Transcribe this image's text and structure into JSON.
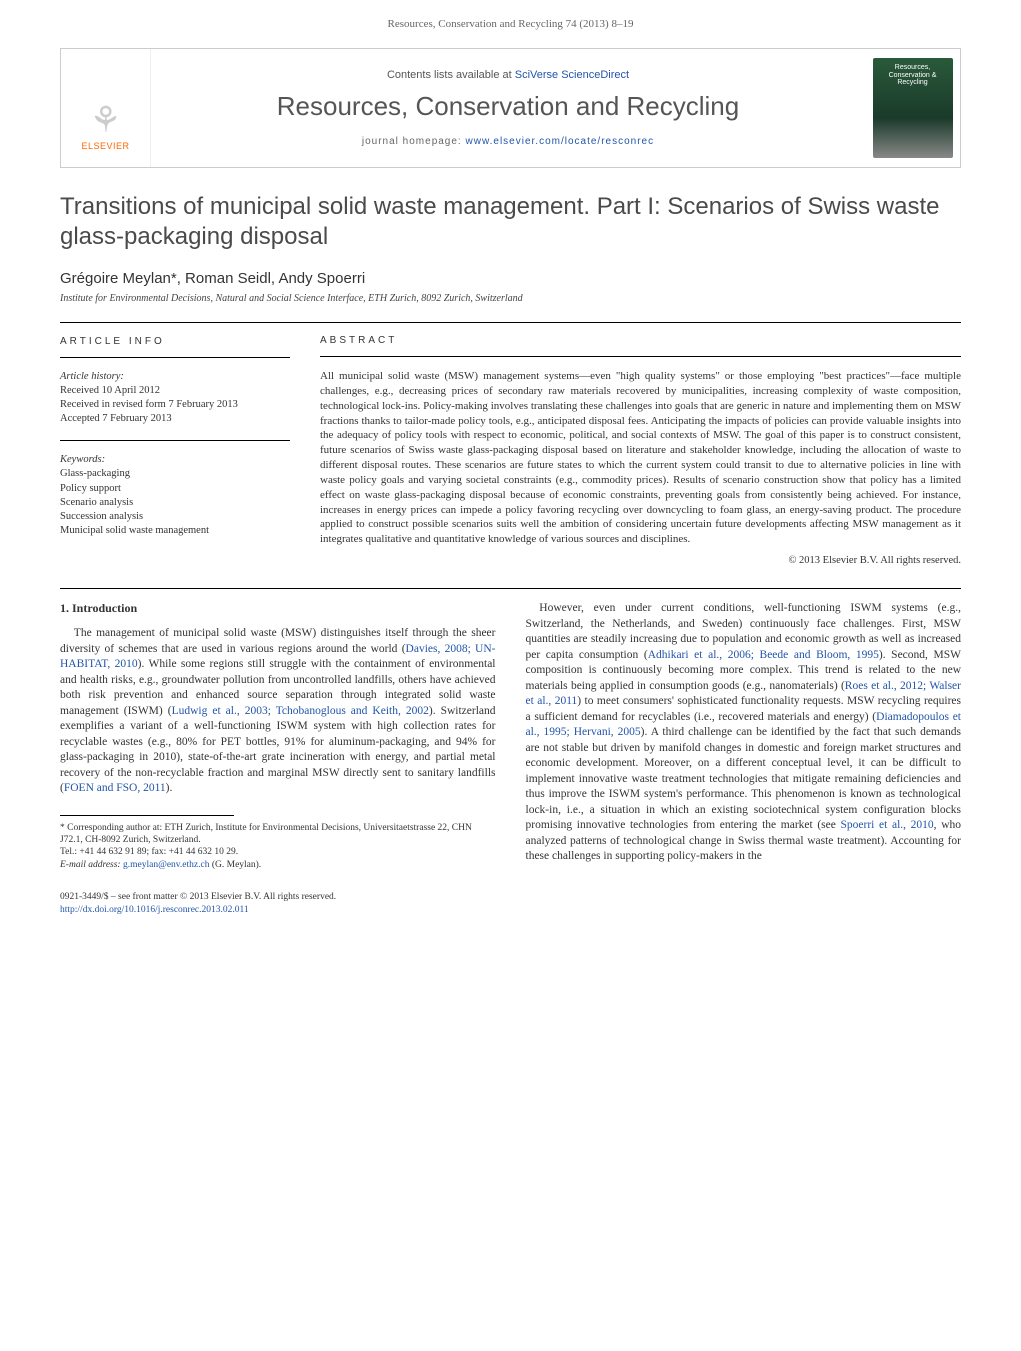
{
  "header": {
    "running_head": "Resources, Conservation and Recycling 74 (2013) 8–19"
  },
  "banner": {
    "logo_text": "ELSEVIER",
    "contents_prefix": "Contents lists available at ",
    "contents_link": "SciVerse ScienceDirect",
    "journal_name": "Resources, Conservation and Recycling",
    "homepage_prefix": "journal homepage: ",
    "homepage_link": "www.elsevier.com/locate/resconrec",
    "cover_line1": "Resources,",
    "cover_line2": "Conservation &",
    "cover_line3": "Recycling"
  },
  "article": {
    "title": "Transitions of municipal solid waste management. Part I: Scenarios of Swiss waste glass-packaging disposal",
    "authors": "Grégoire Meylan*, Roman Seidl, Andy Spoerri",
    "affiliation": "Institute for Environmental Decisions, Natural and Social Science Interface, ETH Zurich, 8092 Zurich, Switzerland"
  },
  "meta": {
    "info_heading": "ARTICLE INFO",
    "history_label": "Article history:",
    "received": "Received 10 April 2012",
    "revised": "Received in revised form 7 February 2013",
    "accepted": "Accepted 7 February 2013",
    "keywords_label": "Keywords:",
    "keywords": [
      "Glass-packaging",
      "Policy support",
      "Scenario analysis",
      "Succession analysis",
      "Municipal solid waste management"
    ]
  },
  "abstract": {
    "heading": "ABSTRACT",
    "body": "All municipal solid waste (MSW) management systems—even \"high quality systems\" or those employing \"best practices\"—face multiple challenges, e.g., decreasing prices of secondary raw materials recovered by municipalities, increasing complexity of waste composition, technological lock-ins. Policy-making involves translating these challenges into goals that are generic in nature and implementing them on MSW fractions thanks to tailor-made policy tools, e.g., anticipated disposal fees. Anticipating the impacts of policies can provide valuable insights into the adequacy of policy tools with respect to economic, political, and social contexts of MSW. The goal of this paper is to construct consistent, future scenarios of Swiss waste glass-packaging disposal based on literature and stakeholder knowledge, including the allocation of waste to different disposal routes. These scenarios are future states to which the current system could transit to due to alternative policies in line with waste policy goals and varying societal constraints (e.g., commodity prices). Results of scenario construction show that policy has a limited effect on waste glass-packaging disposal because of economic constraints, preventing goals from consistently being achieved. For instance, increases in energy prices can impede a policy favoring recycling over downcycling to foam glass, an energy-saving product. The procedure applied to construct possible scenarios suits well the ambition of considering uncertain future developments affecting MSW management as it integrates qualitative and quantitative knowledge of various sources and disciplines.",
    "copyright": "© 2013 Elsevier B.V. All rights reserved."
  },
  "body": {
    "sec1_heading": "1. Introduction",
    "left_p1_a": "The management of municipal solid waste (MSW) distinguishes itself through the sheer diversity of schemes that are used in various regions around the world (",
    "left_p1_ref1": "Davies, 2008; UN-HABITAT, 2010",
    "left_p1_b": "). While some regions still struggle with the containment of environmental and health risks, e.g., groundwater pollution from uncontrolled landfills, others have achieved both risk prevention and enhanced source separation through integrated solid waste management (ISWM) (",
    "left_p1_ref2": "Ludwig et al., 2003; Tchobanoglous and Keith, 2002",
    "left_p1_c": "). Switzerland exemplifies a variant of a well-functioning ISWM system with high collection rates for recyclable wastes (e.g., 80% for PET bottles, 91% for aluminum-packaging, and 94% for glass-packaging in 2010), state-of-the-art grate incineration with energy, and partial metal recovery of the non-recyclable fraction and marginal MSW directly sent to sanitary landfills (",
    "left_p1_ref3": "FOEN and FSO, 2011",
    "left_p1_d": ").",
    "right_p1_a": "However, even under current conditions, well-functioning ISWM systems (e.g., Switzerland, the Netherlands, and Sweden) continuously face challenges. First, MSW quantities are steadily increasing due to population and economic growth as well as increased per capita consumption (",
    "right_p1_ref1": "Adhikari et al., 2006; Beede and Bloom, 1995",
    "right_p1_b": "). Second, MSW composition is continuously becoming more complex. This trend is related to the new materials being applied in consumption goods (e.g., nanomaterials) (",
    "right_p1_ref2": "Roes et al., 2012; Walser et al., 2011",
    "right_p1_c": ") to meet consumers' sophisticated functionality requests. MSW recycling requires a sufficient demand for recyclables (i.e., recovered materials and energy) (",
    "right_p1_ref3": "Diamadopoulos et al., 1995; Hervani, 2005",
    "right_p1_d": "). A third challenge can be identified by the fact that such demands are not stable but driven by manifold changes in domestic and foreign market structures and economic development. Moreover, on a different conceptual level, it can be difficult to implement innovative waste treatment technologies that mitigate remaining deficiencies and thus improve the ISWM system's performance. This phenomenon is known as technological lock-in, i.e., a situation in which an existing sociotechnical system configuration blocks promising innovative technologies from entering the market (see ",
    "right_p1_ref4": "Spoerri et al., 2010",
    "right_p1_e": ", who analyzed patterns of technological change in Swiss thermal waste treatment). Accounting for these challenges in supporting policy-makers in the"
  },
  "footnote": {
    "corr_label": "* Corresponding author at: ETH Zurich, Institute for Environmental Decisions, Universitaetstrasse 22, CHN J72.1, CH-8092 Zurich, Switzerland.",
    "tel": "Tel.: +41 44 632 91 89; fax: +41 44 632 10 29.",
    "email_label": "E-mail address: ",
    "email": "g.meylan@env.ethz.ch",
    "email_suffix": " (G. Meylan)."
  },
  "footer": {
    "line1": "0921-3449/$ – see front matter © 2013 Elsevier B.V. All rights reserved.",
    "doi_link": "http://dx.doi.org/10.1016/j.resconrec.2013.02.011"
  },
  "colors": {
    "link": "#2255aa",
    "text": "#333333",
    "muted": "#666666",
    "orange": "#ff6600"
  }
}
